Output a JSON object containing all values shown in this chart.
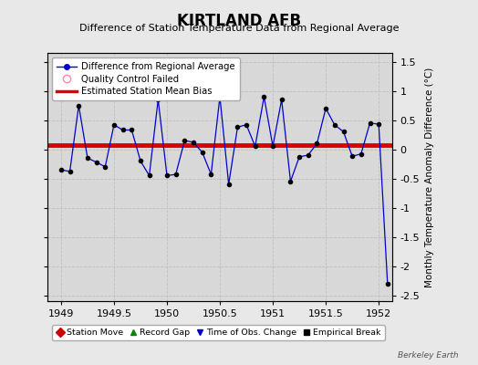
{
  "title": "KIRTLAND AFB",
  "subtitle": "Difference of Station Temperature Data from Regional Average",
  "ylabel": "Monthly Temperature Anomaly Difference (°C)",
  "background_color": "#e8e8e8",
  "plot_bg_color": "#d8d8d8",
  "bias_value": 0.07,
  "xlim": [
    1948.875,
    1952.125
  ],
  "ylim": [
    -2.6,
    1.65
  ],
  "xticks": [
    1949,
    1949.5,
    1950,
    1950.5,
    1951,
    1951.5,
    1952
  ],
  "yticks": [
    -2.5,
    -2,
    -1.5,
    -1,
    -0.5,
    0,
    0.5,
    1,
    1.5
  ],
  "x_data": [
    1949.0,
    1949.083,
    1949.167,
    1949.25,
    1949.333,
    1949.417,
    1949.5,
    1949.583,
    1949.667,
    1949.75,
    1949.833,
    1949.917,
    1950.0,
    1950.083,
    1950.167,
    1950.25,
    1950.333,
    1950.417,
    1950.5,
    1950.583,
    1950.667,
    1950.75,
    1950.833,
    1950.917,
    1951.0,
    1951.083,
    1951.167,
    1951.25,
    1951.333,
    1951.417,
    1951.5,
    1951.583,
    1951.667,
    1951.75,
    1951.833,
    1951.917,
    1952.0,
    1952.083
  ],
  "y_data": [
    -0.35,
    -0.38,
    0.75,
    -0.15,
    -0.22,
    -0.3,
    0.42,
    0.33,
    0.33,
    -0.2,
    -0.45,
    0.85,
    -0.45,
    -0.43,
    0.15,
    0.12,
    -0.05,
    -0.43,
    0.9,
    -0.6,
    0.38,
    0.42,
    0.05,
    0.9,
    0.05,
    0.85,
    -0.55,
    -0.13,
    -0.1,
    0.1,
    0.7,
    0.42,
    0.3,
    -0.12,
    -0.08,
    0.45,
    0.43,
    -2.3
  ],
  "line_color": "#0000cc",
  "marker_color": "#000000",
  "bias_color": "#dd0000",
  "watermark": "Berkeley Earth",
  "grid_color": "#c0c0c0",
  "tick_fontsize": 8,
  "ylabel_fontsize": 7.5,
  "title_fontsize": 12,
  "subtitle_fontsize": 8
}
